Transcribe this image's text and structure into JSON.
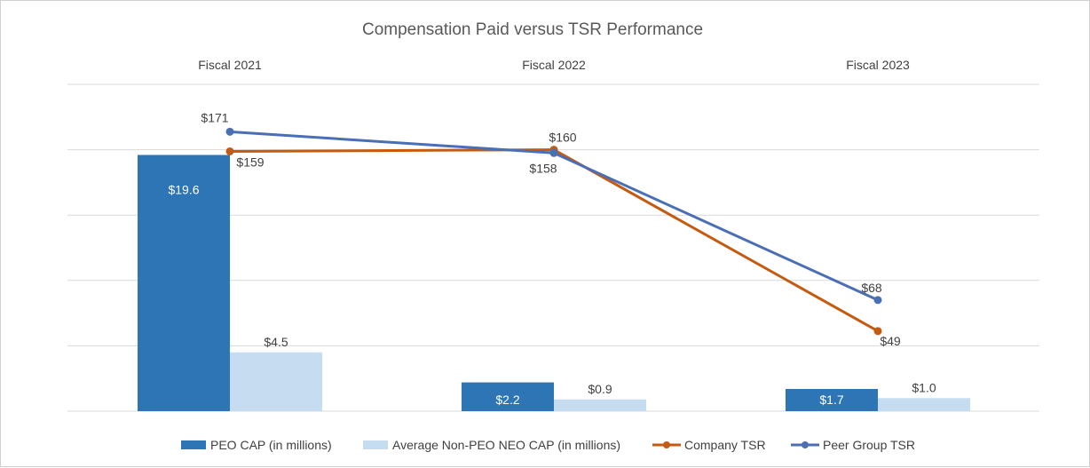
{
  "chart_data": {
    "type": "bar",
    "title": "Compensation Paid versus TSR Performance",
    "categories": [
      "Fiscal 2021",
      "Fiscal 2022",
      "Fiscal 2023"
    ],
    "series": [
      {
        "name": "PEO CAP (in millions)",
        "kind": "bar",
        "color": "#2e75b6",
        "values": [
          19.6,
          2.2,
          1.7
        ],
        "labels": [
          "$19.6",
          "$2.2",
          "$1.7"
        ]
      },
      {
        "name": "Average Non-PEO NEO CAP (in millions)",
        "kind": "bar",
        "color": "#c5dcf1",
        "values": [
          4.5,
          0.9,
          1.0
        ],
        "labels": [
          "$4.5",
          "$0.9",
          "$1.0"
        ]
      },
      {
        "name": "Company TSR",
        "kind": "line",
        "color": "#c55a11",
        "values": [
          159,
          160,
          49
        ],
        "labels": [
          "$159",
          "$160",
          "$49"
        ]
      },
      {
        "name": "Peer Group TSR",
        "kind": "line",
        "color": "#4a6fb5",
        "values": [
          171,
          158,
          68
        ],
        "labels": [
          "$171",
          "$158",
          "$68"
        ]
      }
    ],
    "bar_axis": {
      "range": [
        0,
        25
      ]
    },
    "line_axis": {
      "range": [
        0,
        200
      ]
    },
    "grid": true,
    "legend": "bottom"
  }
}
